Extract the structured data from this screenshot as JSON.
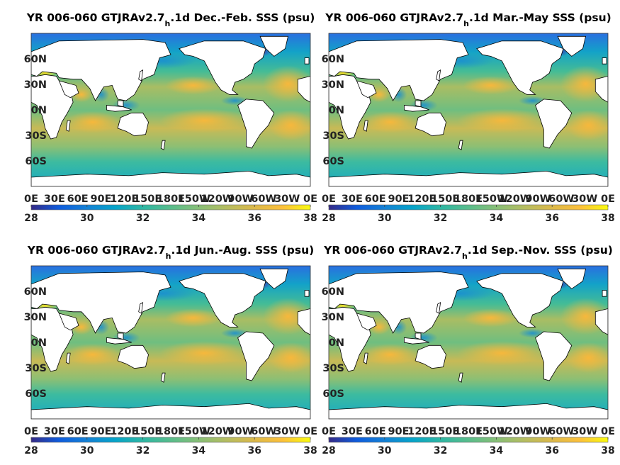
{
  "chart_data": [
    {
      "type": "heatmap",
      "title_pre": "YR 006-060 GTJRAv2.7",
      "title_sub": "h",
      "title_post": ".1d Dec.-Feb. SSS (psu)",
      "xticklabels": [
        "0E",
        "30E",
        "60E",
        "90E",
        "120E",
        "150E",
        "180E",
        "150W",
        "120W",
        "90W",
        "60W",
        "30W",
        "0E"
      ],
      "yticklabels": [
        "60N",
        "30N",
        "0N",
        "30S",
        "60S"
      ],
      "colorbar": {
        "ticks": [
          28,
          30,
          32,
          34,
          36,
          38
        ],
        "range": [
          28,
          38
        ]
      }
    },
    {
      "type": "heatmap",
      "title_pre": "YR 006-060 GTJRAv2.7",
      "title_sub": "h",
      "title_post": ".1d Mar.-May SSS (psu)",
      "xticklabels": [
        "0E",
        "30E",
        "60E",
        "90E",
        "120E",
        "150E",
        "180E",
        "150W",
        "120W",
        "90W",
        "60W",
        "30W",
        "0E"
      ],
      "yticklabels": [
        "60N",
        "30N",
        "0N",
        "30S",
        "60S"
      ],
      "colorbar": {
        "ticks": [
          28,
          30,
          32,
          34,
          36,
          38
        ],
        "range": [
          28,
          38
        ]
      }
    },
    {
      "type": "heatmap",
      "title_pre": "YR 006-060 GTJRAv2.7",
      "title_sub": "h",
      "title_post": ".1d Jun.-Aug. SSS (psu)",
      "xticklabels": [
        "0E",
        "30E",
        "60E",
        "90E",
        "120E",
        "150E",
        "180E",
        "150W",
        "120W",
        "90W",
        "60W",
        "30W",
        "0E"
      ],
      "yticklabels": [
        "60N",
        "30N",
        "0N",
        "30S",
        "60S"
      ],
      "colorbar": {
        "ticks": [
          28,
          30,
          32,
          34,
          36,
          38
        ],
        "range": [
          28,
          38
        ]
      }
    },
    {
      "type": "heatmap",
      "title_pre": "YR 006-060 GTJRAv2.7",
      "title_sub": "h",
      "title_post": ".1d Sep.-Nov. SSS (psu)",
      "xticklabels": [
        "0E",
        "30E",
        "60E",
        "90E",
        "120E",
        "150E",
        "180E",
        "150W",
        "120W",
        "90W",
        "60W",
        "30W",
        "0E"
      ],
      "yticklabels": [
        "60N",
        "30N",
        "0N",
        "30S",
        "60S"
      ],
      "colorbar": {
        "ticks": [
          28,
          30,
          32,
          34,
          36,
          38
        ],
        "range": [
          28,
          38
        ]
      }
    }
  ]
}
